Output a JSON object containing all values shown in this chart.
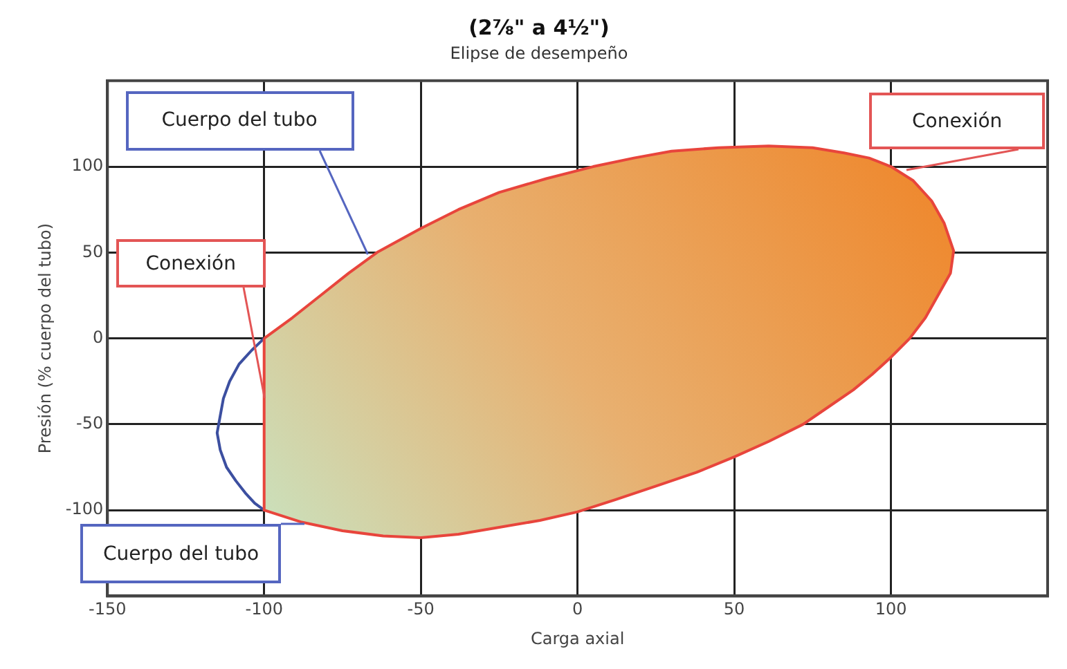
{
  "chart_data": {
    "type": "line",
    "title": "(2⅞\" a 4½\")",
    "subtitle": "Elipse de desempeño",
    "xlabel": "Carga axial",
    "ylabel": "Presión (% cuerpo del tubo)",
    "xlim": [
      -150,
      150
    ],
    "ylim": [
      -150,
      150
    ],
    "xticks": [
      -150,
      -100,
      -50,
      0,
      50,
      100
    ],
    "yticks": [
      -100,
      -50,
      0,
      50,
      100
    ],
    "grid": true,
    "legend": false,
    "marker": "none",
    "line_style": "solid",
    "series": [
      {
        "type": "area",
        "color": "#e8453c",
        "x": [
          -100,
          -91,
          -82,
          -73,
          -64,
          -50,
          -38,
          -25,
          -10,
          5,
          18,
          30,
          45,
          61,
          75,
          85,
          93,
          100,
          107,
          113,
          117,
          120,
          119,
          115,
          111,
          106,
          100,
          94,
          88,
          80,
          72,
          61,
          50,
          38,
          25,
          12,
          0,
          -12,
          -25,
          -38,
          -50,
          -62,
          -75,
          -88,
          -100,
          -100
        ],
        "values": [
          0,
          12,
          25,
          38,
          50,
          64,
          75,
          85,
          93,
          100,
          105,
          109,
          111,
          112,
          111,
          108,
          105,
          100,
          92,
          80,
          67,
          51,
          38,
          25,
          12,
          0,
          -11,
          -21,
          -30,
          -40,
          -50,
          -60,
          -69,
          -78,
          -86,
          -94,
          -101,
          -106,
          -110,
          -114,
          -116,
          -115,
          -112,
          -107,
          -100,
          0
        ]
      },
      {
        "type": "line",
        "color": "#3c4fa0",
        "x": [
          -100,
          -104,
          -108,
          -111,
          -113,
          -114,
          -115,
          -114,
          -112,
          -109,
          -106,
          -103,
          -100
        ],
        "values": [
          0,
          -7,
          -15,
          -25,
          -35,
          -45,
          -55,
          -65,
          -75,
          -83,
          -90,
          -96,
          -100
        ]
      }
    ],
    "annotations": [
      {
        "text": "Cuerpo del tubo",
        "x": -67,
        "y": 49
      },
      {
        "text": "Conexión",
        "x": 105,
        "y": 98
      },
      {
        "text": "Conexión",
        "x": -100,
        "y": -35
      },
      {
        "text": "Cuerpo del tubo",
        "x": -87,
        "y": -108
      }
    ]
  }
}
